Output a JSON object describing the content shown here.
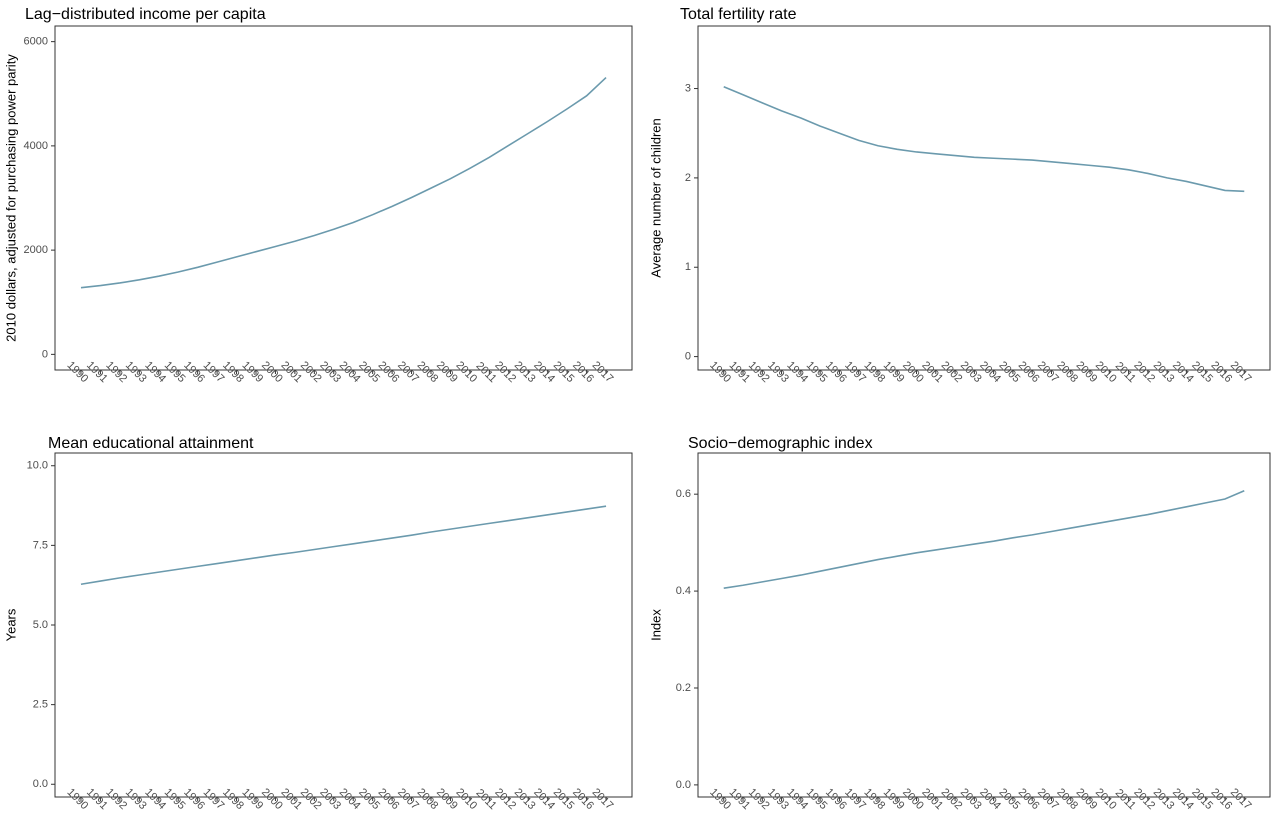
{
  "line_color": "#6b9aad",
  "chart_data": [
    {
      "type": "line",
      "title": "Lag−distributed income per capita",
      "xlabel": "",
      "ylabel": "2010 dollars, adjusted for purchasing power parity",
      "ylim": [
        -300,
        6300
      ],
      "yticks": [
        0,
        2000,
        4000,
        6000
      ],
      "ytick_labels": [
        "0",
        "2000",
        "4000",
        "6000"
      ],
      "grid": false,
      "x": [
        "1990",
        "1991",
        "1992",
        "1993",
        "1994",
        "1995",
        "1996",
        "1997",
        "1998",
        "1999",
        "2000",
        "2001",
        "2002",
        "2003",
        "2004",
        "2005",
        "2006",
        "2007",
        "2008",
        "2009",
        "2010",
        "2011",
        "2012",
        "2013",
        "2014",
        "2015",
        "2016",
        "2017"
      ],
      "series": [
        {
          "values": [
            1280,
            1320,
            1370,
            1430,
            1500,
            1580,
            1670,
            1770,
            1870,
            1970,
            2070,
            2170,
            2280,
            2400,
            2530,
            2680,
            2840,
            3010,
            3190,
            3370,
            3570,
            3780,
            4010,
            4240,
            4470,
            4710,
            4960,
            5310
          ]
        }
      ]
    },
    {
      "type": "line",
      "title": "Total fertility rate",
      "xlabel": "",
      "ylabel": "Average number of children",
      "ylim": [
        -0.15,
        3.7
      ],
      "yticks": [
        0,
        1,
        2,
        3
      ],
      "ytick_labels": [
        "0",
        "1",
        "2",
        "3"
      ],
      "grid": false,
      "x": [
        "1990",
        "1991",
        "1992",
        "1993",
        "1994",
        "1995",
        "1996",
        "1997",
        "1998",
        "1999",
        "2000",
        "2001",
        "2002",
        "2003",
        "2004",
        "2005",
        "2006",
        "2007",
        "2008",
        "2009",
        "2010",
        "2011",
        "2012",
        "2013",
        "2014",
        "2015",
        "2016",
        "2017"
      ],
      "series": [
        {
          "values": [
            3.02,
            2.93,
            2.84,
            2.75,
            2.67,
            2.58,
            2.5,
            2.42,
            2.36,
            2.32,
            2.29,
            2.27,
            2.25,
            2.23,
            2.22,
            2.21,
            2.2,
            2.18,
            2.16,
            2.14,
            2.12,
            2.09,
            2.05,
            2.0,
            1.96,
            1.91,
            1.86,
            1.85
          ]
        }
      ]
    },
    {
      "type": "line",
      "title": "Mean educational attainment",
      "xlabel": "",
      "ylabel": "Years",
      "ylim": [
        -0.4,
        10.4
      ],
      "yticks": [
        0,
        2.5,
        5,
        7.5,
        10
      ],
      "ytick_labels": [
        "0.0",
        "2.5",
        "5.0",
        "7.5",
        "10.0"
      ],
      "grid": false,
      "x": [
        "1990",
        "1991",
        "1992",
        "1993",
        "1994",
        "1995",
        "1996",
        "1997",
        "1998",
        "1999",
        "2000",
        "2001",
        "2002",
        "2003",
        "2004",
        "2005",
        "2006",
        "2007",
        "2008",
        "2009",
        "2010",
        "2011",
        "2012",
        "2013",
        "2014",
        "2015",
        "2016",
        "2017"
      ],
      "series": [
        {
          "values": [
            6.28,
            6.38,
            6.48,
            6.57,
            6.66,
            6.75,
            6.84,
            6.93,
            7.02,
            7.11,
            7.2,
            7.28,
            7.37,
            7.46,
            7.55,
            7.64,
            7.73,
            7.82,
            7.92,
            8.01,
            8.1,
            8.19,
            8.28,
            8.37,
            8.46,
            8.55,
            8.64,
            8.73
          ]
        }
      ]
    },
    {
      "type": "line",
      "title": "Socio−demographic index",
      "xlabel": "",
      "ylabel": "Index",
      "ylim": [
        -0.025,
        0.685
      ],
      "yticks": [
        0,
        0.2,
        0.4,
        0.6
      ],
      "ytick_labels": [
        "0.0",
        "0.2",
        "0.4",
        "0.6"
      ],
      "grid": false,
      "x": [
        "1990",
        "1991",
        "1992",
        "1993",
        "1994",
        "1995",
        "1996",
        "1997",
        "1998",
        "1999",
        "2000",
        "2001",
        "2002",
        "2003",
        "2004",
        "2005",
        "2006",
        "2007",
        "2008",
        "2009",
        "2010",
        "2011",
        "2012",
        "2013",
        "2014",
        "2015",
        "2016",
        "2017"
      ],
      "series": [
        {
          "values": [
            0.406,
            0.412,
            0.419,
            0.426,
            0.433,
            0.441,
            0.449,
            0.457,
            0.465,
            0.472,
            0.479,
            0.485,
            0.491,
            0.497,
            0.503,
            0.51,
            0.516,
            0.523,
            0.53,
            0.537,
            0.544,
            0.551,
            0.558,
            0.566,
            0.574,
            0.582,
            0.59,
            0.607
          ]
        }
      ]
    }
  ]
}
